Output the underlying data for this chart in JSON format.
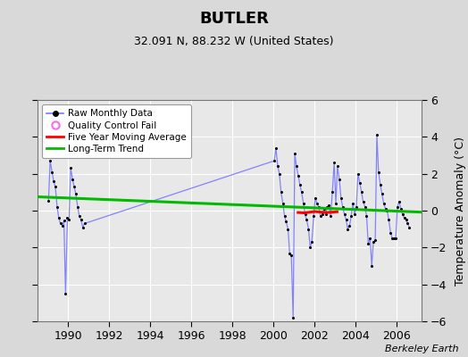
{
  "title": "BUTLER",
  "subtitle": "32.091 N, 88.232 W (United States)",
  "ylabel": "Temperature Anomaly (°C)",
  "credit": "Berkeley Earth",
  "xlim": [
    1988.5,
    2007.2
  ],
  "ylim": [
    -6,
    6
  ],
  "yticks": [
    -6,
    -4,
    -2,
    0,
    2,
    4,
    6
  ],
  "xticks": [
    1990,
    1992,
    1994,
    1996,
    1998,
    2000,
    2002,
    2004,
    2006
  ],
  "bg_color": "#d9d9d9",
  "plot_bg_color": "#e8e8e8",
  "raw_x": [
    1989.04,
    1989.12,
    1989.21,
    1989.29,
    1989.37,
    1989.46,
    1989.54,
    1989.62,
    1989.71,
    1989.79,
    1989.87,
    1989.96,
    1990.04,
    1990.12,
    1990.21,
    1990.29,
    1990.37,
    1990.46,
    1990.54,
    1990.62,
    1990.71,
    1990.79,
    2000.04,
    2000.12,
    2000.21,
    2000.29,
    2000.37,
    2000.46,
    2000.54,
    2000.62,
    2000.71,
    2000.79,
    2000.87,
    2000.96,
    2001.04,
    2001.12,
    2001.21,
    2001.29,
    2001.37,
    2001.46,
    2001.54,
    2001.62,
    2001.71,
    2001.79,
    2001.87,
    2001.96,
    2002.04,
    2002.12,
    2002.21,
    2002.29,
    2002.37,
    2002.46,
    2002.54,
    2002.62,
    2002.71,
    2002.79,
    2002.87,
    2002.96,
    2003.04,
    2003.12,
    2003.21,
    2003.29,
    2003.37,
    2003.46,
    2003.54,
    2003.62,
    2003.71,
    2003.79,
    2003.87,
    2003.96,
    2004.04,
    2004.12,
    2004.21,
    2004.29,
    2004.37,
    2004.46,
    2004.54,
    2004.62,
    2004.71,
    2004.79,
    2004.87,
    2004.96,
    2005.04,
    2005.12,
    2005.21,
    2005.29,
    2005.37,
    2005.46,
    2005.54,
    2005.62,
    2005.71,
    2005.79,
    2005.87,
    2005.96,
    2006.04,
    2006.12,
    2006.21,
    2006.29,
    2006.37,
    2006.46,
    2006.54,
    2006.62
  ],
  "raw_y": [
    0.55,
    2.7,
    2.1,
    1.6,
    1.3,
    0.2,
    -0.4,
    -0.7,
    -0.8,
    -0.55,
    -4.5,
    -0.4,
    -0.5,
    2.3,
    1.7,
    1.3,
    0.9,
    0.2,
    -0.3,
    -0.5,
    -0.9,
    -0.7,
    2.7,
    3.4,
    2.4,
    2.0,
    1.0,
    0.4,
    -0.3,
    -0.6,
    -1.0,
    -2.3,
    -2.4,
    -5.8,
    3.1,
    2.4,
    1.9,
    1.4,
    1.0,
    0.4,
    -0.2,
    -0.5,
    -1.0,
    -2.0,
    -1.7,
    -0.3,
    0.7,
    0.4,
    0.2,
    -0.3,
    -0.2,
    0.1,
    -0.2,
    0.2,
    0.3,
    -0.3,
    1.0,
    2.6,
    0.4,
    2.4,
    1.7,
    0.7,
    0.2,
    -0.2,
    -0.5,
    -1.0,
    -0.8,
    -0.3,
    0.4,
    -0.2,
    0.2,
    2.0,
    1.5,
    1.0,
    0.5,
    0.2,
    -0.3,
    -1.8,
    -1.5,
    -3.0,
    -1.7,
    -1.6,
    4.1,
    2.1,
    1.4,
    0.9,
    0.4,
    0.1,
    0.0,
    -0.5,
    -1.2,
    -1.5,
    -1.5,
    -1.5,
    0.2,
    0.5,
    0.1,
    -0.2,
    -0.4,
    -0.5,
    -0.7,
    -0.9
  ],
  "trend_x": [
    1988.5,
    2007.2
  ],
  "trend_y": [
    0.75,
    -0.08
  ],
  "ma_x": [
    2001.2,
    2001.5,
    2001.8,
    2002.0,
    2002.3,
    2002.6,
    2002.9,
    2003.1
  ],
  "ma_y": [
    -0.1,
    -0.12,
    -0.08,
    -0.05,
    -0.08,
    -0.1,
    -0.08,
    -0.06
  ],
  "line_color": "#7777ff",
  "marker_color": "#000000",
  "trend_color": "#00bb00",
  "ma_color": "#ff0000",
  "qc_color": "#ff66ff",
  "title_fontsize": 13,
  "subtitle_fontsize": 9,
  "tick_fontsize": 9,
  "ylabel_fontsize": 9
}
